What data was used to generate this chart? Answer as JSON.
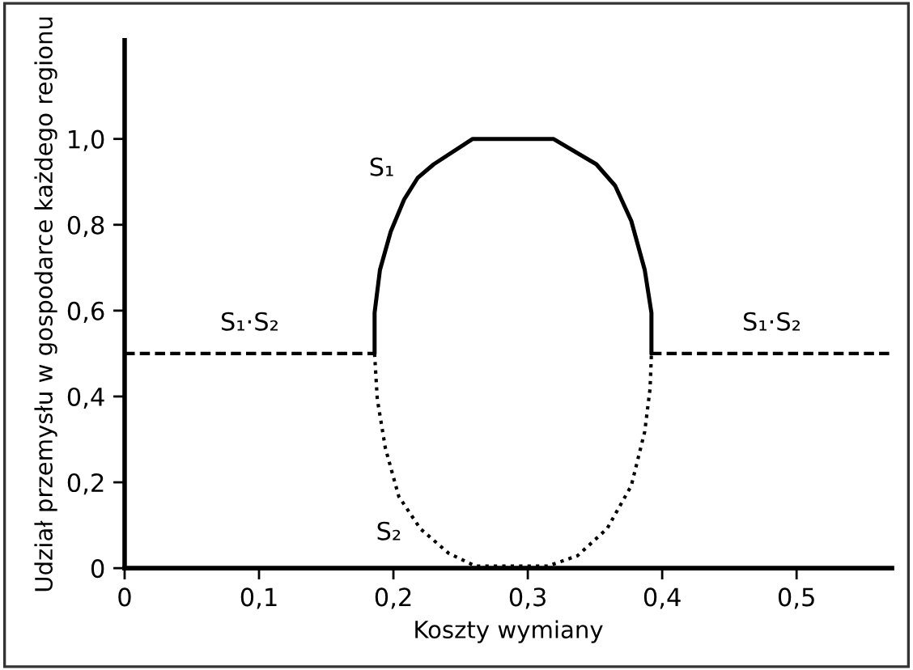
{
  "chart_data": {
    "type": "line",
    "xlabel": "Koszty wymiany",
    "ylabel": "Udział przemysłu w gospodarce każdego regionu",
    "xlim": [
      0,
      0.571
    ],
    "ylim": [
      0,
      1.23
    ],
    "xticks": [
      0,
      {
        "value": 0.1,
        "label": "0,1"
      },
      {
        "value": 0.2,
        "label": "0,2"
      },
      {
        "value": 0.3,
        "label": "0,3"
      },
      {
        "value": 0.4,
        "label": "0,4"
      },
      {
        "value": 0.5,
        "label": "0,5"
      }
    ],
    "yticks": [
      0,
      {
        "value": 0.2,
        "label": "0,2"
      },
      {
        "value": 0.4,
        "label": "0,4"
      },
      {
        "value": 0.6,
        "label": "0,6"
      },
      {
        "value": 0.8,
        "label": "0,8"
      },
      {
        "value": 1.0,
        "label": "1,0"
      }
    ],
    "grid": false,
    "legend": false,
    "marker": "none",
    "series": [
      {
        "name": "S₁",
        "color": "#000000",
        "line_style": "solid",
        "x": [
          0.186,
          0.186,
          0.19,
          0.198,
          0.208,
          0.218,
          0.23,
          0.259,
          0.29,
          0.319,
          0.351,
          0.365,
          0.377,
          0.387,
          0.392,
          0.392
        ],
        "values": [
          0.5,
          0.595,
          0.695,
          0.784,
          0.859,
          0.909,
          0.941,
          1.0,
          1.0,
          1.0,
          0.941,
          0.891,
          0.809,
          0.695,
          0.595,
          0.5
        ]
      },
      {
        "name": "S₂",
        "color": "#000000",
        "line_style": "dotted",
        "x": [
          0.186,
          0.188,
          0.194,
          0.204,
          0.22,
          0.241,
          0.261,
          0.315,
          0.337,
          0.359,
          0.377,
          0.387,
          0.391,
          0.392
        ],
        "values": [
          0.5,
          0.394,
          0.28,
          0.167,
          0.092,
          0.035,
          0.005,
          0.005,
          0.029,
          0.092,
          0.192,
          0.318,
          0.419,
          0.5
        ]
      },
      {
        "name": "S₁·S₂",
        "color": "#000000",
        "line_style": "dashed",
        "x": [
          0,
          0.186
        ],
        "values": [
          0.5,
          0.5
        ]
      },
      {
        "name": "S₁·S₂",
        "color": "#000000",
        "line_style": "dashed",
        "x": [
          0.392,
          0.571
        ],
        "values": [
          0.5,
          0.5
        ]
      }
    ]
  }
}
